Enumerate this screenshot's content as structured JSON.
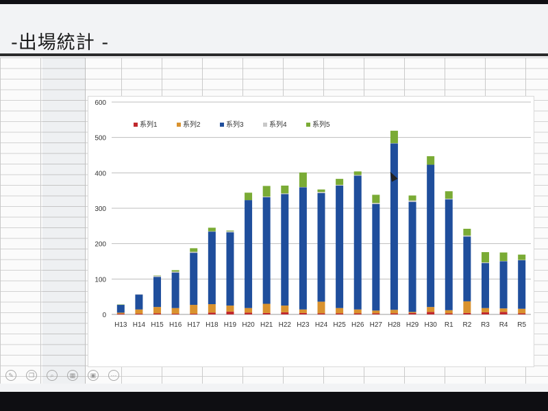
{
  "slide": {
    "title": "-出場統計 -"
  },
  "chart_data": {
    "type": "bar",
    "stacked": true,
    "categories": [
      "H13",
      "H14",
      "H15",
      "H16",
      "H17",
      "H18",
      "H19",
      "H20",
      "H21",
      "H22",
      "H23",
      "H24",
      "H25",
      "H26",
      "H27",
      "H28",
      "H29",
      "H30",
      "R1",
      "R2",
      "R3",
      "R4",
      "R5"
    ],
    "series": [
      {
        "name": "系列1",
        "color": "#c0282d",
        "values": [
          2,
          2,
          3,
          2,
          2,
          5,
          8,
          5,
          4,
          6,
          4,
          3,
          3,
          3,
          3,
          3,
          4,
          7,
          3,
          4,
          6,
          7,
          3
        ]
      },
      {
        "name": "系列2",
        "color": "#d9922e",
        "values": [
          3,
          12,
          18,
          16,
          25,
          24,
          17,
          13,
          26,
          19,
          10,
          33,
          15,
          11,
          8,
          10,
          3,
          14,
          9,
          33,
          12,
          10,
          13
        ]
      },
      {
        "name": "系列3",
        "color": "#1f4e9c",
        "values": [
          22,
          42,
          85,
          100,
          147,
          205,
          207,
          305,
          301,
          315,
          345,
          307,
          346,
          378,
          301,
          470,
          311,
          402,
          313,
          183,
          127,
          133,
          137
        ]
      },
      {
        "name": "系列4",
        "color": "#c9c9c9",
        "values": [
          0,
          1,
          3,
          3,
          3,
          1,
          3,
          0,
          2,
          2,
          1,
          3,
          2,
          2,
          3,
          1,
          4,
          0,
          2,
          3,
          2,
          1,
          1
        ]
      },
      {
        "name": "系列5",
        "color": "#7aab35",
        "values": [
          1,
          0,
          1,
          4,
          10,
          10,
          2,
          21,
          30,
          22,
          41,
          7,
          17,
          10,
          23,
          35,
          14,
          24,
          21,
          19,
          29,
          24,
          15
        ]
      }
    ],
    "ylim": [
      0,
      600
    ],
    "yticks": [
      0,
      100,
      200,
      300,
      400,
      500,
      600
    ],
    "grid": true,
    "legend_position": "top-left",
    "title": "",
    "xlabel": "",
    "ylabel": ""
  },
  "toolbar": {
    "icons": [
      "pen-icon",
      "copy-icon",
      "search-icon",
      "grid-icon",
      "camera-icon",
      "more-icon"
    ]
  }
}
